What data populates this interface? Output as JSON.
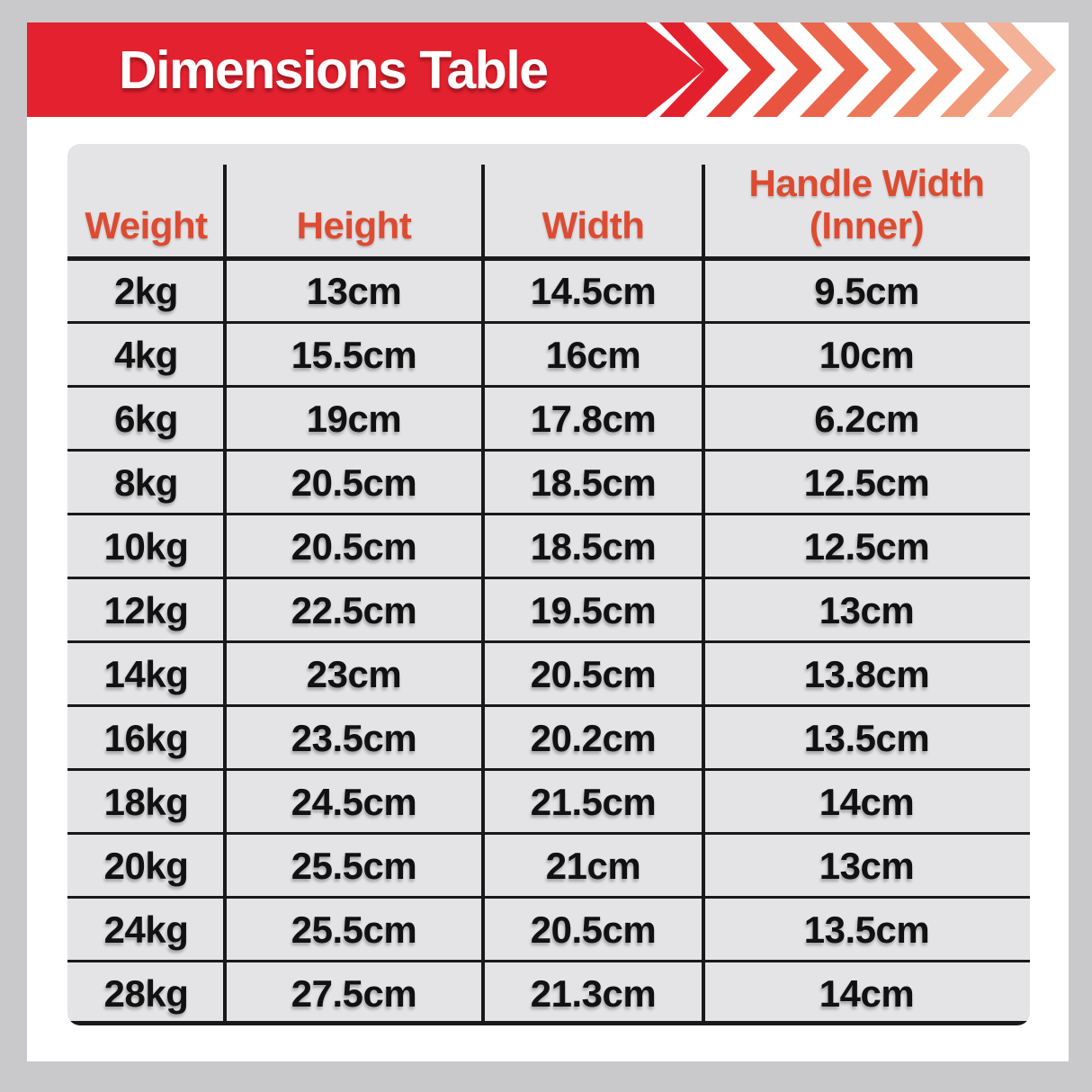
{
  "banner": {
    "title": "Dimensions Table",
    "bg_color": "#e4212e",
    "chevron_colors": [
      "#e41f2d",
      "#e63b33",
      "#e85440",
      "#ea654c",
      "#ec7658",
      "#ee8666",
      "#f09a7a",
      "#f3b197"
    ]
  },
  "table": {
    "header_color": "#dd4b31",
    "headers": [
      "Weight",
      "Height",
      "Width",
      "Handle Width\n(Inner)"
    ],
    "rows": [
      [
        "2kg",
        "13cm",
        "14.5cm",
        "9.5cm"
      ],
      [
        "4kg",
        "15.5cm",
        "16cm",
        "10cm"
      ],
      [
        "6kg",
        "19cm",
        "17.8cm",
        "6.2cm"
      ],
      [
        "8kg",
        "20.5cm",
        "18.5cm",
        "12.5cm"
      ],
      [
        "10kg",
        "20.5cm",
        "18.5cm",
        "12.5cm"
      ],
      [
        "12kg",
        "22.5cm",
        "19.5cm",
        "13cm"
      ],
      [
        "14kg",
        "23cm",
        "20.5cm",
        "13.8cm"
      ],
      [
        "16kg",
        "23.5cm",
        "20.2cm",
        "13.5cm"
      ],
      [
        "18kg",
        "24.5cm",
        "21.5cm",
        "14cm"
      ],
      [
        "20kg",
        "25.5cm",
        "21cm",
        "13cm"
      ],
      [
        "24kg",
        "25.5cm",
        "20.5cm",
        "13.5cm"
      ],
      [
        "28kg",
        "27.5cm",
        "21.3cm",
        "14cm"
      ]
    ]
  }
}
